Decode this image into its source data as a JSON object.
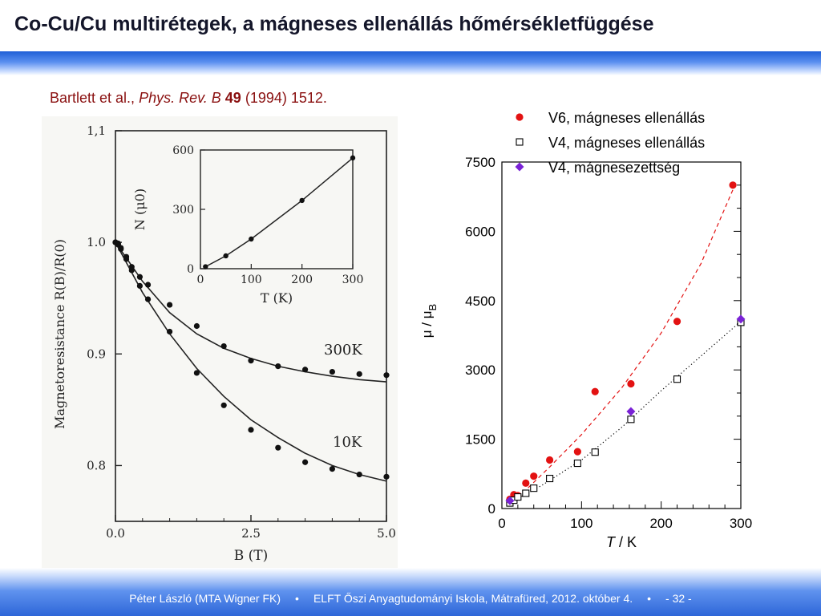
{
  "slide": {
    "title": "Co-Cu/Cu multirétegek, a mágneses ellenállás hőmérsékletfüggése",
    "citation": {
      "authors": "Bartlett et al.,",
      "journal": "Phys. Rev. B",
      "volume": "49",
      "rest": "(1994) 1512."
    },
    "footer": {
      "author": "Péter László (MTA Wigner FK)",
      "separator": "•",
      "event": "ELFT Őszi Anyagtudományi Iskola, Mátrafüred, 2012. október 4.",
      "page": "- 32 -"
    }
  },
  "colors": {
    "red": "#e31212",
    "purple": "#7a22d6",
    "accent": "#2d66d8"
  },
  "chart_data": [
    {
      "type": "scatter",
      "title": "",
      "xlabel": "B (T)",
      "ylabel": "Magnetoresistance R(B)/R(0)",
      "xlim": [
        0,
        5
      ],
      "ylim": [
        0.75,
        1.1
      ],
      "xticks": [
        "0.0",
        "2.5",
        "5.0"
      ],
      "yticks": [
        "0.8",
        "0.9",
        "1.0",
        "1,1"
      ],
      "series": [
        {
          "name": "300K",
          "points": [
            [
              0,
              1.0
            ],
            [
              0.05,
              0.999
            ],
            [
              0.1,
              0.995
            ],
            [
              0.2,
              0.987
            ],
            [
              0.3,
              0.978
            ],
            [
              0.45,
              0.969
            ],
            [
              0.6,
              0.962
            ],
            [
              1.0,
              0.944
            ],
            [
              1.5,
              0.925
            ],
            [
              2.0,
              0.907
            ],
            [
              2.5,
              0.894
            ],
            [
              3.0,
              0.889
            ],
            [
              3.5,
              0.886
            ],
            [
              4.0,
              0.884
            ],
            [
              4.5,
              0.882
            ],
            [
              5.0,
              0.881
            ]
          ],
          "fit": [
            [
              0,
              1.0
            ],
            [
              0.5,
              0.965
            ],
            [
              1,
              0.937
            ],
            [
              1.5,
              0.918
            ],
            [
              2,
              0.905
            ],
            [
              2.5,
              0.896
            ],
            [
              3,
              0.889
            ],
            [
              3.5,
              0.884
            ],
            [
              4,
              0.88
            ],
            [
              4.5,
              0.877
            ],
            [
              5,
              0.875
            ]
          ]
        },
        {
          "name": "10K",
          "points": [
            [
              0,
              1.0
            ],
            [
              0.05,
              0.998
            ],
            [
              0.1,
              0.994
            ],
            [
              0.2,
              0.985
            ],
            [
              0.3,
              0.975
            ],
            [
              0.45,
              0.961
            ],
            [
              0.6,
              0.949
            ],
            [
              1.0,
              0.92
            ],
            [
              1.5,
              0.883
            ],
            [
              2.0,
              0.854
            ],
            [
              2.5,
              0.832
            ],
            [
              3.0,
              0.816
            ],
            [
              3.5,
              0.803
            ],
            [
              4.0,
              0.797
            ],
            [
              4.5,
              0.792
            ],
            [
              5.0,
              0.79
            ]
          ],
          "fit": [
            [
              0,
              1.0
            ],
            [
              0.5,
              0.955
            ],
            [
              1,
              0.918
            ],
            [
              1.5,
              0.887
            ],
            [
              2,
              0.862
            ],
            [
              2.5,
              0.841
            ],
            [
              3,
              0.825
            ],
            [
              3.5,
              0.811
            ],
            [
              4,
              0.8
            ],
            [
              4.5,
              0.792
            ],
            [
              5,
              0.786
            ]
          ]
        }
      ]
    },
    {
      "type": "scatter",
      "title": "",
      "xlabel": "T (K)",
      "ylabel": "N (μ0)",
      "xlim": [
        0,
        300
      ],
      "ylim": [
        0,
        600
      ],
      "xticks": [
        "0",
        "100",
        "200",
        "300"
      ],
      "yticks": [
        "0",
        "300",
        "600"
      ],
      "series": [
        {
          "name": "",
          "points": [
            [
              10,
              10
            ],
            [
              50,
              65
            ],
            [
              100,
              150
            ],
            [
              200,
              345
            ],
            [
              300,
              560
            ]
          ]
        }
      ]
    },
    {
      "type": "scatter",
      "title": "",
      "xlabel_italic": "T",
      "xlabel_unit": " / K",
      "ylabel_main": "μ / μ",
      "ylabel_sub": "B",
      "xlim": [
        0,
        300
      ],
      "ylim": [
        0,
        7500
      ],
      "xticks": [
        "0",
        "100",
        "200",
        "300"
      ],
      "yticks": [
        "0",
        "1500",
        "3000",
        "4500",
        "6000",
        "7500"
      ],
      "legend_position": "top-right",
      "series": [
        {
          "name": "V6, mágneses ellenállás",
          "marker": "filled-circle",
          "color": "#e31212",
          "points": [
            [
              10,
              200
            ],
            [
              15,
              300
            ],
            [
              20,
              280
            ],
            [
              30,
              550
            ],
            [
              40,
              700
            ],
            [
              60,
              1050
            ],
            [
              95,
              1230
            ],
            [
              117,
              2530
            ],
            [
              162,
              2700
            ],
            [
              220,
              4050
            ],
            [
              290,
              7000
            ]
          ],
          "trend": "dashed",
          "trend_points": [
            [
              10,
              200
            ],
            [
              30,
              400
            ],
            [
              60,
              900
            ],
            [
              100,
              1600
            ],
            [
              150,
              2600
            ],
            [
              200,
              3800
            ],
            [
              250,
              5300
            ],
            [
              290,
              6900
            ]
          ]
        },
        {
          "name": "V4, mágneses ellenállás",
          "marker": "open-square",
          "color": "#000000",
          "points": [
            [
              10,
              120
            ],
            [
              15,
              180
            ],
            [
              20,
              250
            ],
            [
              30,
              330
            ],
            [
              40,
              440
            ],
            [
              60,
              650
            ],
            [
              95,
              980
            ],
            [
              117,
              1220
            ],
            [
              162,
              1930
            ],
            [
              220,
              2800
            ],
            [
              300,
              4030
            ]
          ],
          "trend": "dotted",
          "trend_points": [
            [
              10,
              120
            ],
            [
              50,
              500
            ],
            [
              100,
              1050
            ],
            [
              150,
              1750
            ],
            [
              200,
              2550
            ],
            [
              250,
              3300
            ],
            [
              300,
              4050
            ]
          ]
        },
        {
          "name": "V4, mágnesezettség",
          "marker": "filled-diamond",
          "color": "#7a22d6",
          "points": [
            [
              10,
              170
            ],
            [
              162,
              2100
            ],
            [
              300,
              4100
            ]
          ]
        }
      ]
    }
  ]
}
